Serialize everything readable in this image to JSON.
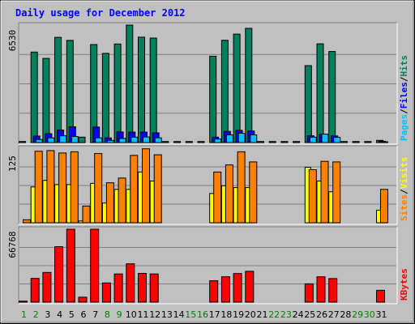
{
  "chart_data": {
    "type": "bar",
    "title": "Daily usage for December 2012",
    "categories": [
      "1",
      "2",
      "3",
      "4",
      "5",
      "6",
      "7",
      "8",
      "9",
      "10",
      "11",
      "12",
      "13",
      "14",
      "15",
      "16",
      "17",
      "18",
      "19",
      "20",
      "21",
      "22",
      "23",
      "24",
      "25",
      "26",
      "27",
      "28",
      "29",
      "30",
      "31"
    ],
    "weekend_days": [
      "1",
      "2",
      "8",
      "9",
      "15",
      "16",
      "22",
      "23",
      "29",
      "30"
    ],
    "panels": [
      {
        "name": "top",
        "ymax": 6530,
        "ymax_label": "6530",
        "right_labels": [
          "Pages",
          "/",
          "Files",
          "/",
          "Hits"
        ],
        "series": [
          {
            "name": "Hits",
            "color": "#00805c",
            "values": [
              60,
              5030,
              4680,
              5850,
              5680,
              300,
              5450,
              4960,
              5480,
              6530,
              5860,
              5810,
              60,
              60,
              60,
              60,
              4800,
              5690,
              6030,
              6350,
              60,
              60,
              60,
              60,
              4280,
              5490,
              5060,
              60,
              60,
              60,
              120
            ]
          },
          {
            "name": "Files",
            "color": "#0000ff",
            "values": [
              0,
              360,
              490,
              700,
              880,
              0,
              860,
              260,
              590,
              580,
              580,
              540,
              0,
              0,
              0,
              0,
              300,
              620,
              680,
              640,
              0,
              0,
              0,
              0,
              380,
              460,
              370,
              0,
              0,
              0,
              70
            ]
          },
          {
            "name": "Pages",
            "color": "#00c0ff",
            "values": [
              0,
              170,
              260,
              380,
              340,
              0,
              260,
              120,
              230,
              300,
              310,
              260,
              0,
              0,
              0,
              0,
              200,
              430,
              520,
              430,
              0,
              0,
              0,
              0,
              300,
              470,
              290,
              0,
              0,
              0,
              40
            ]
          }
        ]
      },
      {
        "name": "middle",
        "ymax": 125,
        "ymax_label": "125",
        "right_labels": [
          "Sites",
          "/",
          "Visits"
        ],
        "series": [
          {
            "name": "Visits",
            "color": "#ffff00",
            "values": [
              0,
              60,
              71,
              64,
              64,
              3,
              66,
              33,
              56,
              56,
              85,
              70,
              0,
              0,
              0,
              0,
              49,
              62,
              59,
              59,
              0,
              0,
              0,
              0,
              93,
              70,
              52,
              0,
              0,
              0,
              21
            ]
          },
          {
            "name": "Sites",
            "color": "#ff8000",
            "values": [
              5,
              120,
              121,
              117,
              119,
              28,
              116,
              67,
              75,
              113,
              124,
              114,
              0,
              0,
              0,
              0,
              85,
              97,
              119,
              102,
              0,
              0,
              0,
              0,
              89,
              103,
              102,
              0,
              0,
              0,
              56
            ]
          }
        ]
      },
      {
        "name": "bottom",
        "ymax": 66768,
        "ymax_label": "66768",
        "right_labels": [
          "KBytes"
        ],
        "series": [
          {
            "name": "KBytes",
            "color": "#ff0000",
            "values": [
              900,
              21700,
              27200,
              50800,
              66768,
              4500,
              66768,
              17600,
              25800,
              35100,
              26300,
              25800,
              0,
              0,
              0,
              0,
              19600,
              23200,
              26200,
              28300,
              0,
              0,
              0,
              0,
              16800,
              23200,
              21600,
              0,
              0,
              0,
              10800
            ]
          }
        ]
      }
    ],
    "colors": {
      "page_bg": "#c0c0c0",
      "title": "#0000ff",
      "weekday_label": "#000000",
      "weekend_label": "#008000"
    }
  }
}
